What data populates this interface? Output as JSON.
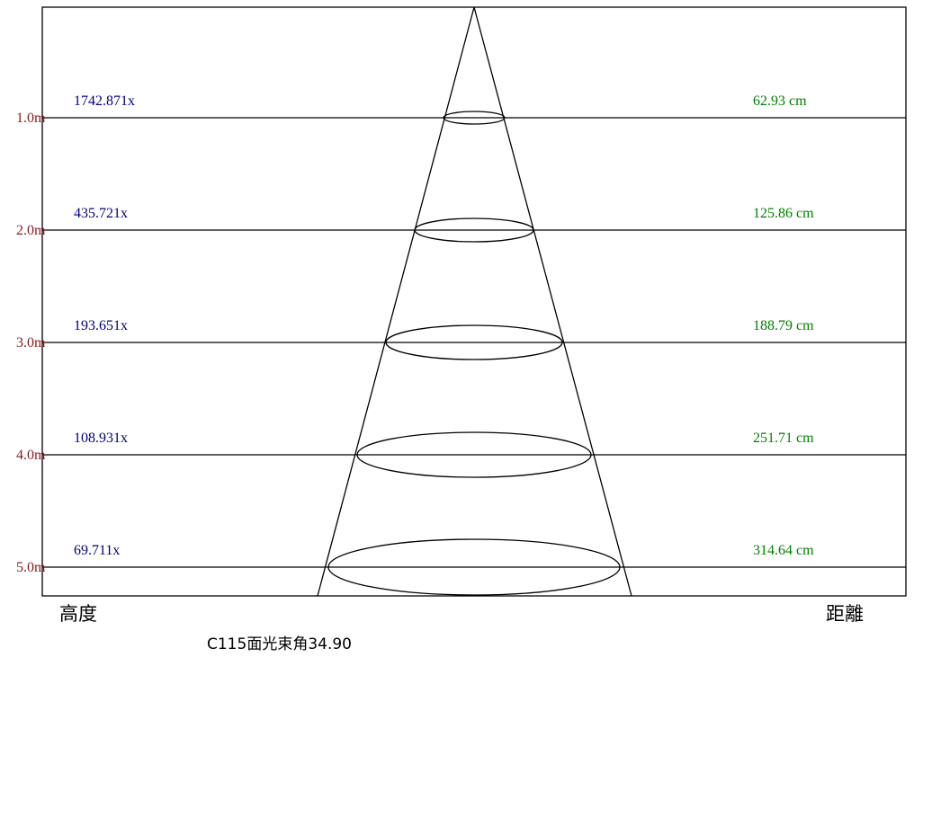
{
  "diagram": {
    "colors": {
      "height": "#8b1a1a",
      "lux": "#000080",
      "distance": "#008000",
      "line": "#000000"
    },
    "rows": [
      {
        "height": "1.0m",
        "illuminance": "1742.871x",
        "diameter": "62.93 cm"
      },
      {
        "height": "2.0m",
        "illuminance": "435.721x",
        "diameter": "125.86 cm"
      },
      {
        "height": "3.0m",
        "illuminance": "193.651x",
        "diameter": "188.79 cm"
      },
      {
        "height": "4.0m",
        "illuminance": "108.931x",
        "diameter": "251.71 cm"
      },
      {
        "height": "5.0m",
        "illuminance": "69.711x",
        "diameter": "314.64 cm"
      }
    ],
    "axis_left": "高度",
    "axis_right": "距離",
    "caption": "C115面光束角34.90"
  }
}
